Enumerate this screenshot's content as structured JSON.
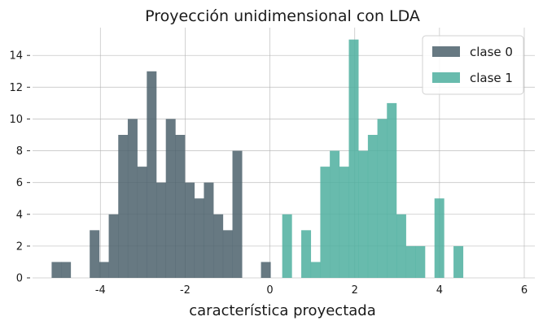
{
  "chart_data": {
    "type": "bar",
    "title": "Proyección unidimensional con LDA",
    "xlabel": "característica proyectada",
    "ylabel": "",
    "xlim": [
      -5.6,
      6.25
    ],
    "ylim": [
      0,
      15.75
    ],
    "xticks": [
      -4,
      -2,
      0,
      2,
      4,
      6
    ],
    "xtick_labels": [
      "-4",
      "-2",
      "0",
      "2",
      "4",
      "6"
    ],
    "yticks": [
      0,
      2,
      4,
      6,
      8,
      10,
      12,
      14
    ],
    "ytick_labels": [
      "0",
      "2",
      "4",
      "6",
      "8",
      "10",
      "12",
      "14"
    ],
    "grid": true,
    "legend_position": "top-right",
    "bin_width": 0.2245,
    "series": [
      {
        "name": "clase 0",
        "color": "#4c626c",
        "opacity": 0.85,
        "bin_start": -5.15,
        "counts": [
          1,
          1,
          0,
          0,
          3,
          1,
          4,
          9,
          10,
          7,
          13,
          6,
          10,
          9,
          6,
          5,
          6,
          4,
          3,
          8,
          0,
          0,
          1
        ]
      },
      {
        "name": "clase 1",
        "color": "#4eaf9f",
        "opacity": 0.85,
        "bin_start": 0.29,
        "counts": [
          4,
          0,
          3,
          1,
          7,
          8,
          7,
          15,
          8,
          9,
          10,
          11,
          4,
          2,
          2,
          0,
          5,
          0,
          2
        ]
      }
    ]
  }
}
